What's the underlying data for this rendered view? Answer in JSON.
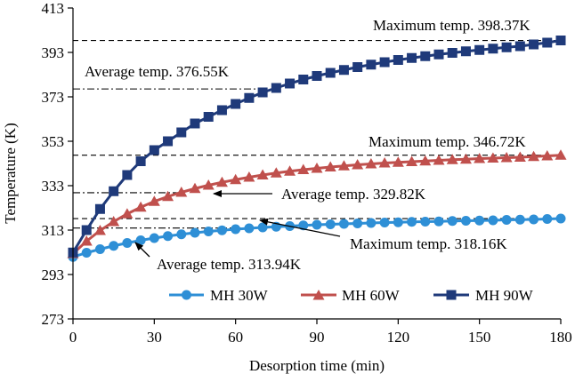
{
  "chart_data": {
    "type": "line",
    "xlabel": "Desorption time (min)",
    "ylabel": "Temperature (K)",
    "xlim": [
      0,
      180
    ],
    "ylim": [
      273,
      413
    ],
    "xticks": [
      0,
      30,
      60,
      90,
      120,
      150,
      180
    ],
    "yticks": [
      273,
      293,
      313,
      333,
      353,
      373,
      393,
      413
    ],
    "grid": false,
    "legend_position": "bottom-right",
    "x": [
      0,
      5,
      10,
      15,
      20,
      25,
      30,
      35,
      40,
      45,
      50,
      55,
      60,
      65,
      70,
      75,
      80,
      85,
      90,
      95,
      100,
      105,
      110,
      115,
      120,
      125,
      130,
      135,
      140,
      145,
      150,
      155,
      160,
      165,
      170,
      175,
      180
    ],
    "series": [
      {
        "name": "MH 30W",
        "color": "#2e8fd6",
        "marker": "circle",
        "values": [
          300.9,
          302.8,
          304.4,
          305.9,
          307.2,
          308.4,
          309.4,
          310.3,
          311.1,
          311.8,
          312.4,
          312.9,
          313.4,
          313.8,
          314.2,
          314.5,
          314.8,
          315.1,
          315.4,
          315.6,
          315.8,
          316.0,
          316.2,
          316.4,
          316.5,
          316.7,
          316.8,
          316.9,
          317.1,
          317.2,
          317.3,
          317.4,
          317.6,
          317.7,
          317.8,
          318.0,
          318.2
        ]
      },
      {
        "name": "MH 60W",
        "color": "#c0504d",
        "marker": "triangle",
        "values": [
          302.4,
          308.0,
          312.8,
          316.8,
          320.3,
          323.3,
          325.9,
          328.1,
          330.0,
          331.7,
          333.2,
          334.5,
          335.7,
          336.8,
          337.8,
          338.7,
          339.5,
          340.2,
          340.8,
          341.4,
          341.9,
          342.4,
          342.8,
          343.2,
          343.5,
          343.8,
          344.1,
          344.4,
          344.7,
          344.9,
          345.2,
          345.4,
          345.6,
          345.8,
          346.1,
          346.4,
          346.7
        ]
      },
      {
        "name": "MH 90W",
        "color": "#1f3a7a",
        "marker": "square",
        "values": [
          302.9,
          313.0,
          322.5,
          330.5,
          337.8,
          344.0,
          349.0,
          353.0,
          357.0,
          361.0,
          364.0,
          367.0,
          369.8,
          372.5,
          375.0,
          377.0,
          379.0,
          380.8,
          382.4,
          383.8,
          385.1,
          386.4,
          387.5,
          388.6,
          389.6,
          390.5,
          391.3,
          392.1,
          392.8,
          393.5,
          394.1,
          394.7,
          395.3,
          395.8,
          396.6,
          397.4,
          398.4
        ]
      }
    ],
    "reference_lines": [
      {
        "name": "max-90",
        "y": 398.37,
        "style": "dashed",
        "x_from": 0,
        "x_to": 180
      },
      {
        "name": "max-60",
        "y": 346.72,
        "style": "dashed",
        "x_from": 0,
        "x_to": 180
      },
      {
        "name": "max-30",
        "y": 318.16,
        "style": "dashed",
        "x_from": 0,
        "x_to": 180
      },
      {
        "name": "avg-90",
        "y": 376.55,
        "style": "dashdot",
        "x_from": 0,
        "x_to": 70
      },
      {
        "name": "avg-60",
        "y": 329.82,
        "style": "dashdot",
        "x_from": 0,
        "x_to": 40
      },
      {
        "name": "avg-30",
        "y": 313.94,
        "style": "dashdot",
        "x_from": 0,
        "x_to": 62
      }
    ],
    "annotations": [
      {
        "text": "Maximum  temp. 398.37K"
      },
      {
        "text": "Average temp. 376.55K"
      },
      {
        "text": "Maximum  temp. 346.72K"
      },
      {
        "text": "Average temp. 329.82K"
      },
      {
        "text": "Maximum  temp. 318.16K"
      },
      {
        "text": "Average temp. 313.94K"
      }
    ]
  }
}
